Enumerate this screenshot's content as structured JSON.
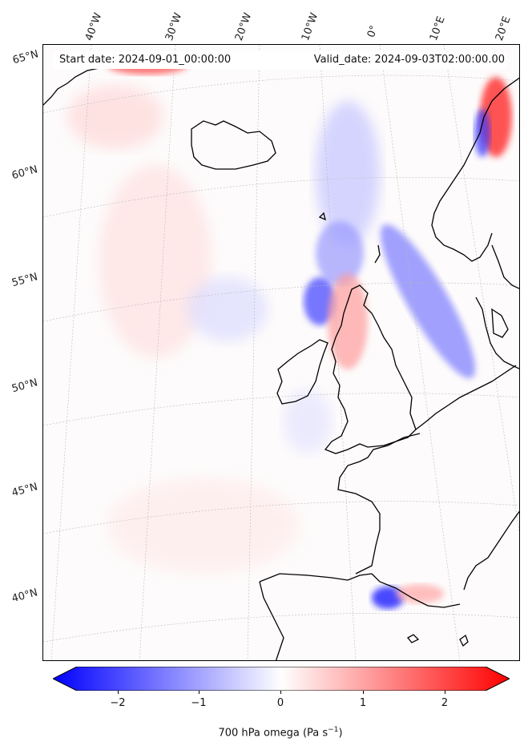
{
  "map": {
    "start_date": "Start date: 2024-09-01_00:00:00",
    "valid_date": "Valid_date: 2024-09-03T02:00:00.00",
    "lon_labels": [
      "40°W",
      "30°W",
      "20°W",
      "10°W",
      "0°",
      "10°E",
      "20°E"
    ],
    "lat_labels": [
      "65°N",
      "60°N",
      "55°N",
      "50°N",
      "45°N",
      "40°N"
    ],
    "colorbar": {
      "ticks": [
        "−2",
        "−1",
        "0",
        "1",
        "2"
      ],
      "label_text": "700 hPa omega (Pa s",
      "label_exp": "−1",
      "label_close": ")",
      "min_color": "#0000ff",
      "mid_color": "#ffffff",
      "max_color": "#ff0000"
    }
  }
}
